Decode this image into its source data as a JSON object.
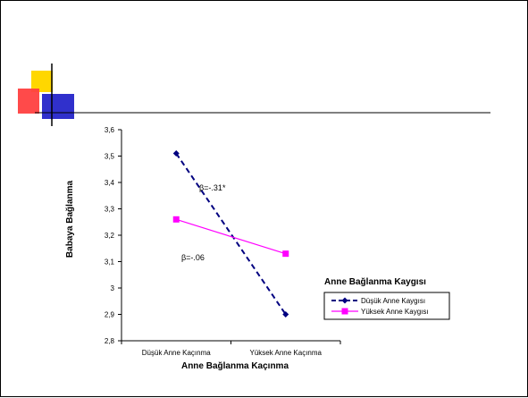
{
  "chart_data": {
    "type": "line",
    "categories": [
      "Düşük Anne Kaçınma",
      "Yüksek Anne Kaçınma"
    ],
    "series": [
      {
        "name": "Düşük Anne Kaygısı",
        "values": [
          3.51,
          2.9
        ],
        "color": "#000080",
        "dash": true,
        "marker": "diamond"
      },
      {
        "name": "Yüksek Anne Kaygısı",
        "values": [
          3.26,
          3.13
        ],
        "color": "#FF00FF",
        "dash": false,
        "marker": "square"
      }
    ],
    "xlabel": "Anne Bağlanma Kaçınma",
    "ylabel": "Babaya Bağlanma",
    "ylim": [
      2.8,
      3.6
    ],
    "yticks": [
      "3,6",
      "3,5",
      "3,4",
      "3,3",
      "3,2",
      "3,1",
      "3",
      "2,9",
      "2,8"
    ],
    "annotations": [
      "β=-.31*",
      "β=-.06"
    ],
    "legend": {
      "title": "Anne Bağlanma Kaygısı",
      "placement": "right"
    },
    "grid": false
  },
  "decoration": {
    "colors": {
      "yellow": "#FFD700",
      "red": "#FF3333",
      "blue": "#3333CC",
      "line": "#000000"
    }
  }
}
